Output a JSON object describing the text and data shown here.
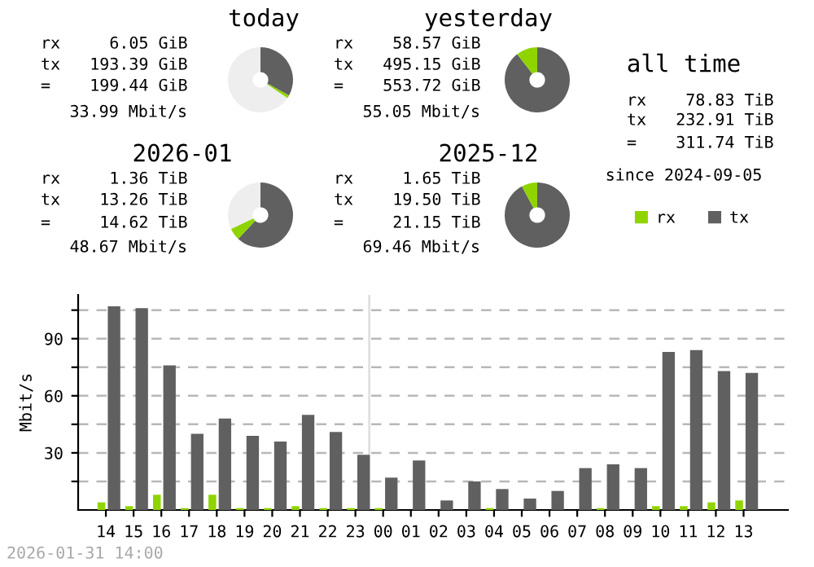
{
  "chart_data": [
    {
      "type": "donut",
      "title": "today",
      "categories": [
        null,
        null,
        null
      ],
      "values": [
        33,
        1.5,
        65.5
      ],
      "colors": [
        "#606060",
        "#8fd400",
        "#eeeeee"
      ],
      "annotations": [
        "rx 6.05 GiB",
        "tx 193.39 GiB",
        "= 199.44 GiB",
        "33.99 Mbit/s"
      ]
    },
    {
      "type": "donut",
      "title": "yesterday",
      "categories": [
        null,
        null
      ],
      "values": [
        89.4,
        10.6
      ],
      "colors": [
        "#606060",
        "#8fd400"
      ],
      "annotations": [
        "rx 58.57 GiB",
        "tx 495.15 GiB",
        "= 553.72 GiB",
        "55.05 Mbit/s"
      ]
    },
    {
      "type": "other",
      "title": "all time",
      "annotations": [
        "rx 78.83 TiB",
        "tx 232.91 TiB",
        "= 311.74 TiB",
        "since 2024-09-05"
      ]
    },
    {
      "type": "donut",
      "title": "2026-01",
      "categories": [
        null,
        null,
        null
      ],
      "values": [
        62,
        6,
        32
      ],
      "colors": [
        "#606060",
        "#8fd400",
        "#eeeeee"
      ],
      "annotations": [
        "rx 1.36 TiB",
        "tx 13.26 TiB",
        "= 14.62 TiB",
        "48.67 Mbit/s"
      ]
    },
    {
      "type": "donut",
      "title": "2025-12",
      "categories": [
        null,
        null
      ],
      "values": [
        92.2,
        7.8
      ],
      "colors": [
        "#606060",
        "#8fd400"
      ],
      "annotations": [
        "rx 1.65 TiB",
        "tx 19.50 TiB",
        "= 21.15 TiB",
        "69.46 Mbit/s"
      ]
    },
    {
      "type": "bar",
      "ylabel": "Mbit/s",
      "categories": [
        "14",
        "15",
        "16",
        "17",
        "18",
        "19",
        "20",
        "21",
        "22",
        "23",
        "00",
        "01",
        "02",
        "03",
        "04",
        "05",
        "06",
        "07",
        "08",
        "09",
        "10",
        "11",
        "12",
        "13"
      ],
      "series": [
        {
          "name": "rx",
          "color": "#8fd400",
          "values": [
            4,
            2,
            8,
            1,
            8,
            1,
            1,
            2,
            1,
            1,
            1,
            0,
            0,
            0,
            1,
            0,
            0,
            0,
            1,
            0,
            2,
            2,
            4,
            5
          ]
        },
        {
          "name": "tx",
          "color": "#606060",
          "values": [
            107,
            106,
            76,
            40,
            48,
            39,
            36,
            50,
            41,
            29,
            17,
            26,
            5,
            15,
            11,
            6,
            10,
            22,
            24,
            22,
            83,
            84,
            73,
            72
          ]
        }
      ],
      "ylim": [
        0,
        113
      ],
      "yticks": [
        {
          "value": 15,
          "label": null
        },
        30,
        {
          "value": 45,
          "label": null
        },
        60,
        {
          "value": 75,
          "label": null
        },
        90,
        {
          "value": 105,
          "label": null
        }
      ],
      "grid": "y",
      "legend": "top right",
      "ref_lines": [
        {
          "axis": "x",
          "value": "00",
          "color": "#e0e0e0"
        }
      ],
      "annotations": [
        "2026-01-31 14:00"
      ]
    }
  ]
}
